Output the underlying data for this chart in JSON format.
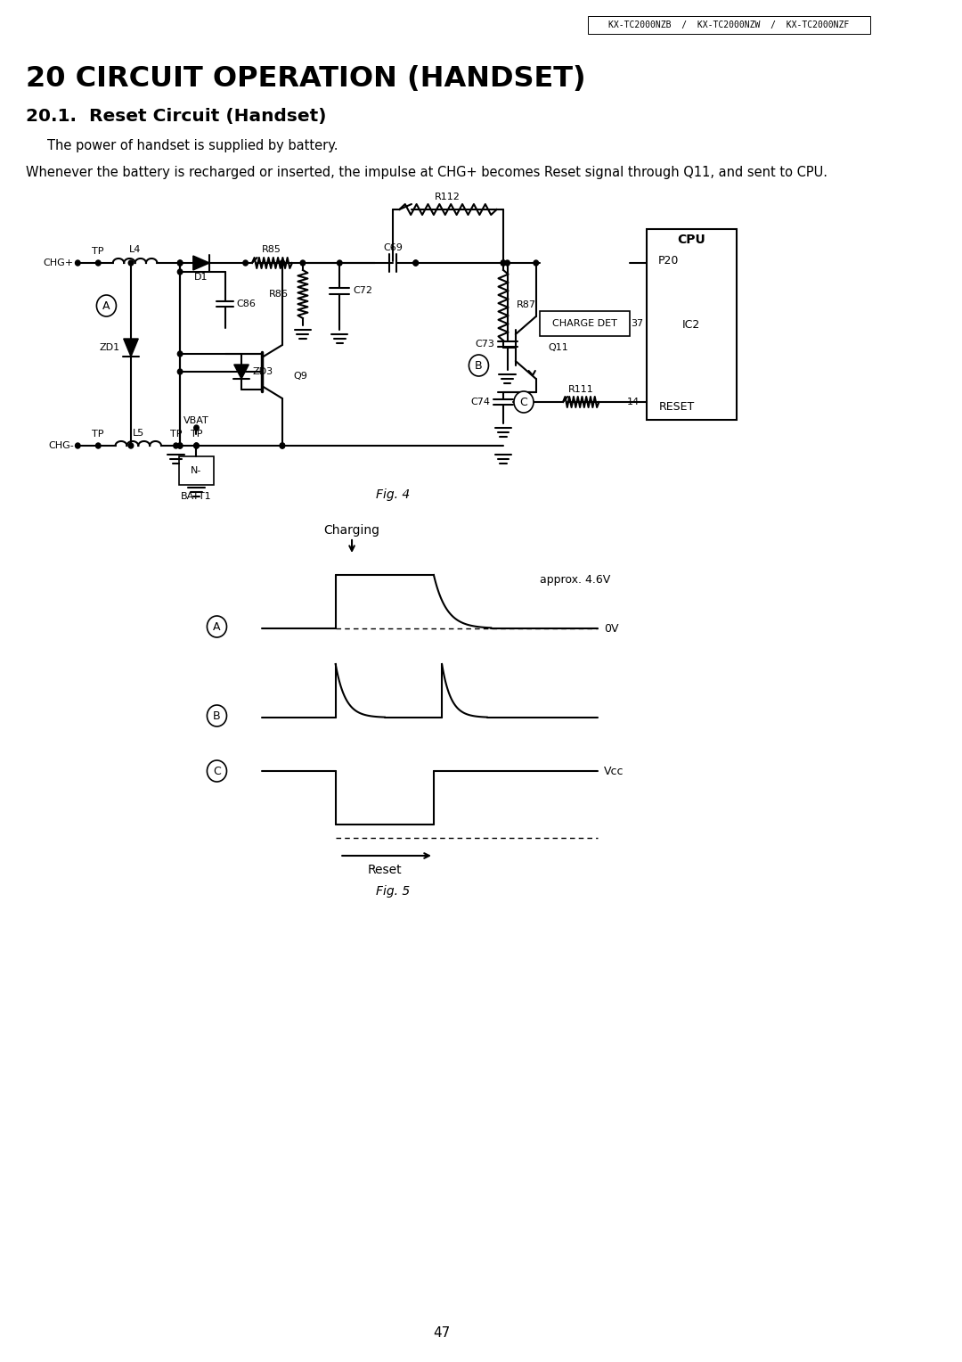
{
  "header_text": "KX-TC2000NZB  /  KX-TC2000NZW  /  KX-TC2000NZF",
  "title": "20 CIRCUIT OPERATION (HANDSET)",
  "subtitle": "20.1.  Reset Circuit (Handset)",
  "para1": "The power of handset is supplied by battery.",
  "para2": "Whenever the battery is recharged or inserted, the impulse at CHG+ becomes Reset signal through Q11, and sent to CPU.",
  "fig4_label": "Fig. 4",
  "fig5_label": "Fig. 5",
  "charging_label": "Charging",
  "approx_label": "approx. 4.6V",
  "zero_v_label": "0V",
  "vcc_label": "Vcc",
  "reset_label": "Reset",
  "page_number": "47",
  "bg_color": "#ffffff",
  "text_color": "#000000"
}
